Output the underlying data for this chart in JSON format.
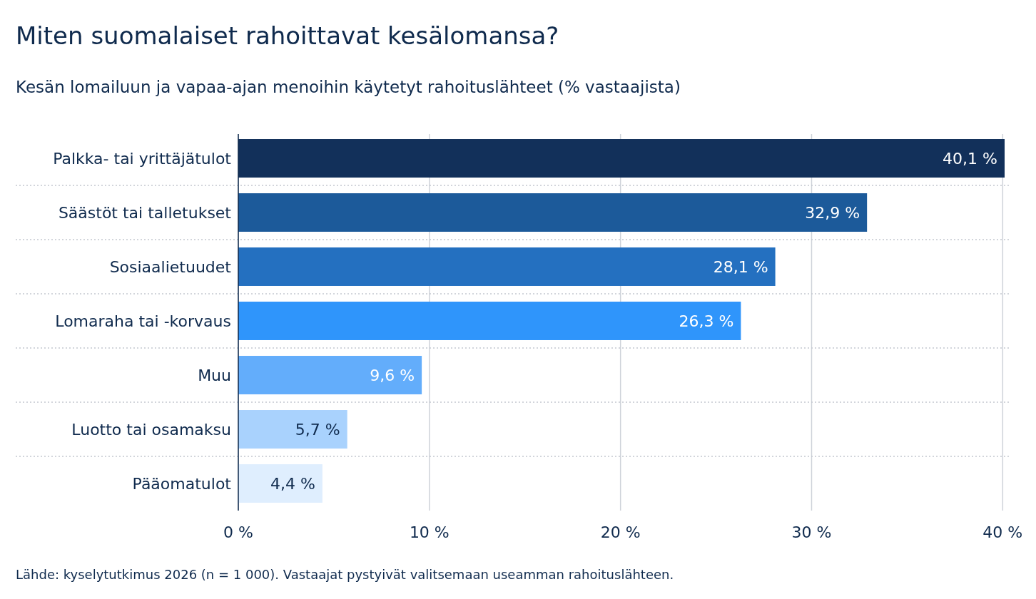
{
  "chart_data": {
    "type": "bar",
    "orientation": "horizontal",
    "title": "Miten suomalaiset rahoittavat kesälomansa?",
    "subtitle": "Kesän lomailuun ja vapaa-ajan menoihin käytetyt rahoituslähteet (% vastaajista)",
    "categories": [
      "Palkka- tai yrittäjätulot",
      "Säästöt tai talletukset",
      "Sosiaalietuudet",
      "Lomaraha tai -korvaus",
      "Muu",
      "Luotto tai osamaksu",
      "Pääomatulot"
    ],
    "values": [
      40.1,
      32.9,
      28.1,
      26.3,
      9.6,
      5.7,
      4.4
    ],
    "colors": [
      "#12305a",
      "#1c5a9a",
      "#2470c0",
      "#2f95fb",
      "#63adfb",
      "#a9d2fd",
      "#dfeefe"
    ],
    "value_labels": [
      "40,1 %",
      "32,9 %",
      "28,1 %",
      "26,3 %",
      "9,6 %",
      "5,7 %",
      "4,4 %"
    ],
    "xlim": [
      0,
      40.1
    ],
    "xticks": [
      {
        "value": 0,
        "label": "0 %"
      },
      {
        "value": 10,
        "label": "10 %"
      },
      {
        "value": 20,
        "label": "20 %"
      },
      {
        "value": 30,
        "label": "30 %"
      },
      {
        "value": 40,
        "label": "40 %"
      }
    ],
    "grid": true,
    "annotations": [
      "Lähde: kyselytutkimus 2026 (n = 1 000). Vastaajat pystyivät valitsemaan useamman rahoituslähteen."
    ]
  }
}
